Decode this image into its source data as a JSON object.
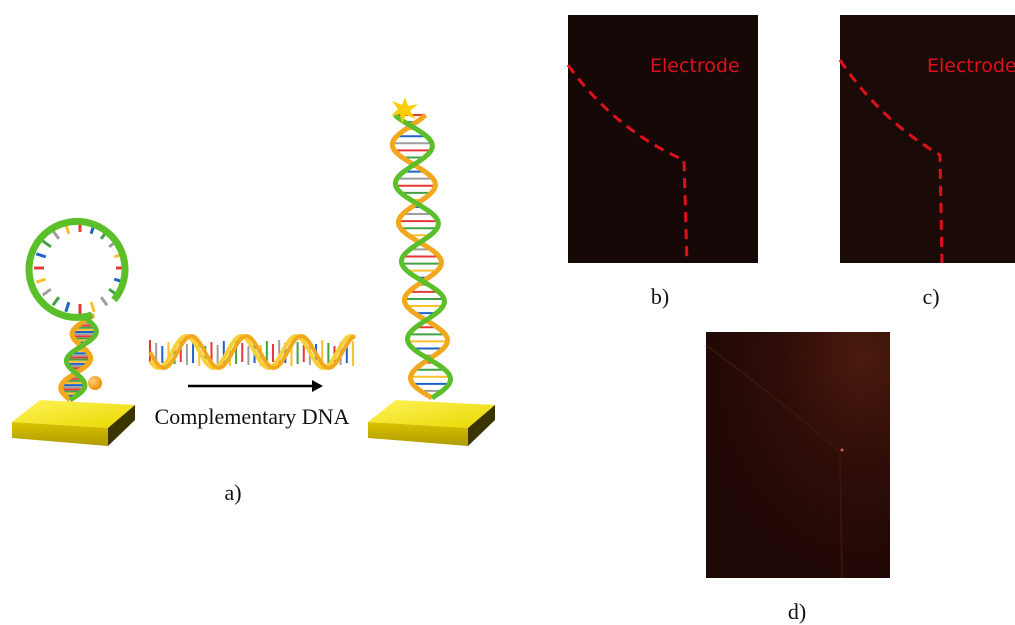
{
  "panels": [
    {
      "label": "a)",
      "caption": "Complementary DNA"
    },
    {
      "label": "b)",
      "annotation": "Electrode"
    },
    {
      "label": "c)",
      "annotation": "Electrode"
    },
    {
      "label": "d)"
    }
  ]
}
